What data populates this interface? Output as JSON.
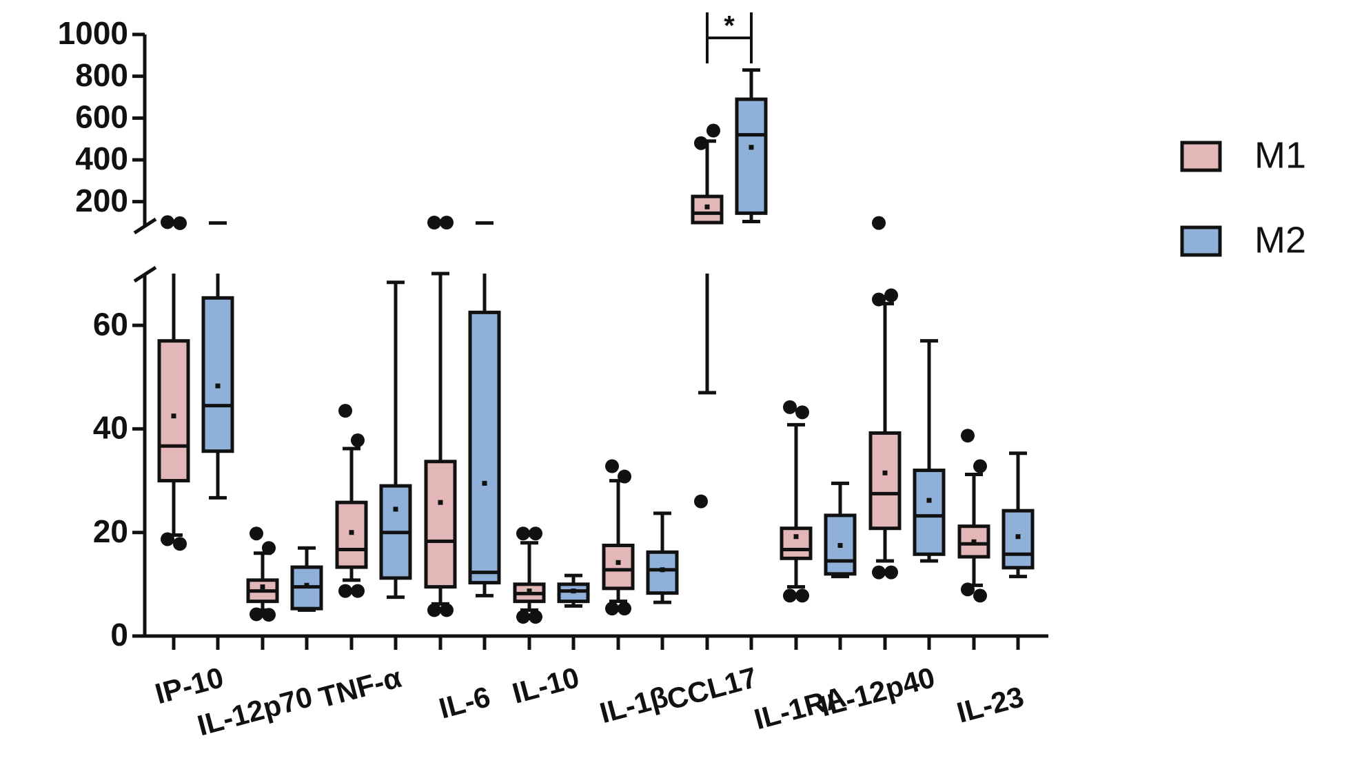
{
  "chart_data": {
    "type": "box",
    "categories": [
      "IP-10",
      "IL-12p70",
      "TNF-α",
      "IL-6",
      "IL-10",
      "IL-1β",
      "CCL17",
      "IL-1RA",
      "IL-12p40",
      "IL-23"
    ],
    "ylim": [
      0,
      1000
    ],
    "axis_break": [
      70,
      100
    ],
    "yticks": [
      0,
      20,
      40,
      60,
      200,
      400,
      600,
      800,
      1000
    ],
    "series": [
      {
        "name": "M1",
        "color": "#e3b7b7",
        "whisker_low": [
          19.5,
          5,
          10.8,
          6.2,
          5,
          6.7,
          47,
          9.5,
          14.5,
          9.8
        ],
        "q1": [
          30,
          6.7,
          13.3,
          9.5,
          6.7,
          9.2,
          100,
          15,
          20.8,
          15.3
        ],
        "median": [
          36.7,
          8.7,
          16.7,
          18.3,
          8.2,
          12.8,
          145,
          16.7,
          27.5,
          17.8
        ],
        "q3": [
          57,
          10.8,
          25.8,
          33.7,
          10,
          17.5,
          225,
          20.8,
          39.2,
          21.2
        ],
        "whisker_high": [
          100,
          16,
          36.2,
          70,
          18,
          30,
          490,
          40.8,
          64.2,
          31.2
        ],
        "mean": [
          42.5,
          9.5,
          20,
          25.8,
          8.7,
          14.2,
          175,
          19.2,
          31.5,
          18.2
        ],
        "outliers": [
          [
            18.7,
            17.8,
            102,
            97
          ],
          [
            19.8,
            17,
            4.2,
            4.1
          ],
          [
            43.5,
            37.8,
            8.7,
            8.7
          ],
          [
            5,
            5,
            100,
            100
          ],
          [
            19.8,
            19.8,
            3.7,
            3.7
          ],
          [
            32.8,
            30.8,
            5.3,
            5.3
          ],
          [
            26,
            540,
            480
          ],
          [
            44.2,
            43.2,
            7.8,
            7.8
          ],
          [
            98,
            65.8,
            65,
            12.3,
            12.3
          ],
          [
            38.7,
            32.8,
            9,
            7.8
          ]
        ]
      },
      {
        "name": "M2",
        "color": "#8fb0d8",
        "whisker_low": [
          26.7,
          5,
          7.5,
          7.8,
          5.8,
          6.5,
          105,
          11.5,
          14.5,
          11.5
        ],
        "q1": [
          35.7,
          5.3,
          11.2,
          10.3,
          6.7,
          8.3,
          145,
          12,
          15.8,
          13.2
        ],
        "median": [
          44.5,
          9.5,
          20,
          12.3,
          8.7,
          12.8,
          520,
          14.5,
          23.2,
          15.8
        ],
        "q3": [
          65.3,
          13.3,
          29,
          62.5,
          10,
          16.2,
          690,
          23.3,
          32,
          24.2
        ],
        "whisker_high": [
          98,
          17,
          68.3,
          98,
          11.7,
          23.7,
          830,
          29.5,
          57,
          35.3
        ],
        "mean": [
          48.3,
          9.8,
          24.5,
          29.5,
          8.7,
          12.8,
          460,
          17.5,
          26.2,
          19.2
        ],
        "outliers": [
          [],
          [],
          [],
          [],
          [],
          [],
          [],
          [],
          [],
          []
        ]
      }
    ],
    "annotations": [
      {
        "label": "*",
        "category": "CCL17"
      }
    ]
  }
}
